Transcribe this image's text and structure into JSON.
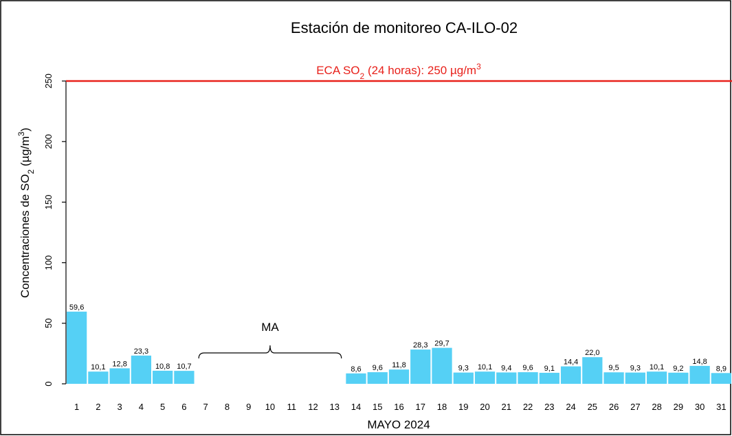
{
  "chart_data": {
    "type": "bar",
    "title": "Estación de monitoreo  CA-ILO-02",
    "xlabel": "MAYO 2024",
    "ylabel": {
      "prefix": "Concentraciones de SO",
      "sub": "2",
      "middle": " (µg/m",
      "sup": "3",
      "suffix": ")"
    },
    "ylim": [
      0,
      250
    ],
    "yticks": [
      "0",
      "50",
      "100",
      "150",
      "200",
      "250"
    ],
    "categories": [
      "1",
      "2",
      "3",
      "4",
      "5",
      "6",
      "7",
      "8",
      "9",
      "10",
      "11",
      "12",
      "13",
      "14",
      "15",
      "16",
      "17",
      "18",
      "19",
      "20",
      "21",
      "22",
      "23",
      "24",
      "25",
      "26",
      "27",
      "28",
      "29",
      "30",
      "31"
    ],
    "values": [
      59.6,
      10.1,
      12.8,
      23.3,
      10.8,
      10.7,
      null,
      null,
      null,
      null,
      null,
      null,
      null,
      8.6,
      9.6,
      11.8,
      28.3,
      29.7,
      9.3,
      10.1,
      9.4,
      9.6,
      9.1,
      14.4,
      22.0,
      9.5,
      9.3,
      10.1,
      9.2,
      14.8,
      8.9
    ],
    "value_labels": [
      "59,6",
      "10,1",
      "12,8",
      "23,3",
      "10,8",
      "10,7",
      "",
      "",
      "",
      "",
      "",
      "",
      "",
      "8,6",
      "9,6",
      "11,8",
      "28,3",
      "29,7",
      "9,3",
      "10,1",
      "9,4",
      "9,6",
      "9,1",
      "14,4",
      "22,0",
      "9,5",
      "9,3",
      "10,1",
      "9,2",
      "14,8",
      "8,9"
    ],
    "bar_color": "#55d0f5",
    "reference_line": {
      "value": 250,
      "color": "#e8201a",
      "label": {
        "prefix": "ECA SO",
        "sub": "2",
        "middle": " (24 horas): 250 µg/m",
        "sup": "3"
      }
    },
    "annotation": {
      "text": "MA",
      "from_category": "7",
      "to_category": "13"
    },
    "grid": false,
    "legend": "none"
  }
}
